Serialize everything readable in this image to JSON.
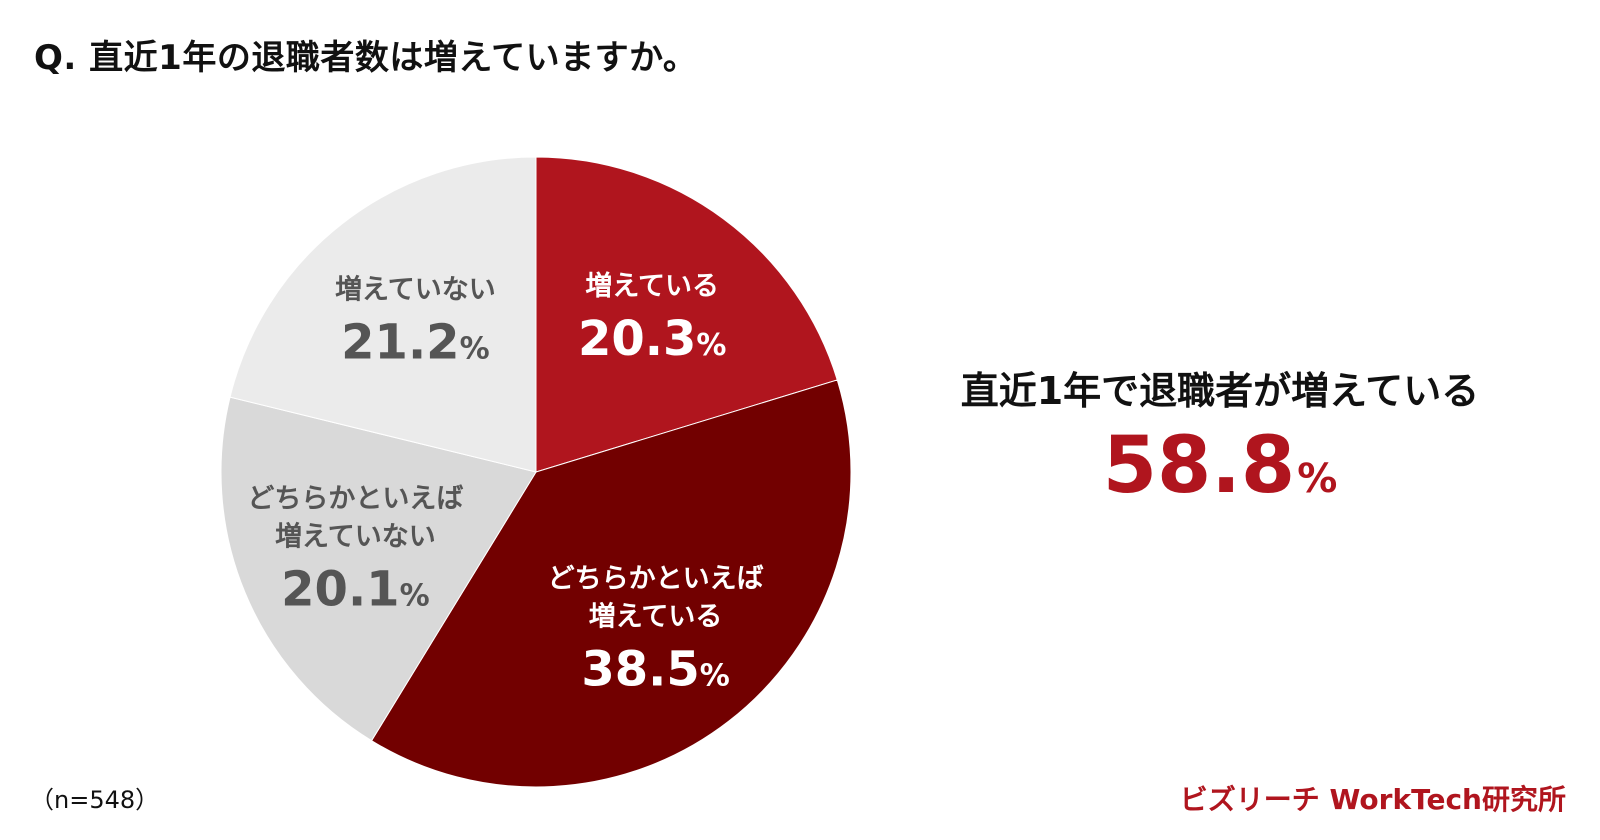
{
  "title": "Q. 直近1年の退職者数は増えていますか。",
  "chart_data": {
    "type": "pie",
    "unit": "%",
    "start_angle_deg": 0,
    "direction": "clockwise",
    "slices": [
      {
        "label_lines": [
          "増えている"
        ],
        "value": 20.3,
        "color": "#b0151e",
        "text_color": "#ffffff"
      },
      {
        "label_lines": [
          "どちらかといえば",
          "増えている"
        ],
        "value": 38.5,
        "color": "#720000",
        "text_color": "#ffffff"
      },
      {
        "label_lines": [
          "どちらかといえば",
          "増えていない"
        ],
        "value": 20.1,
        "color": "#d9d9d9",
        "text_color": "#555555"
      },
      {
        "label_lines": [
          "増えていない"
        ],
        "value": 21.2,
        "color": "#ebebeb",
        "text_color": "#555555"
      }
    ]
  },
  "summary": {
    "text": "直近1年で退職者が増えている",
    "value": "58.8",
    "unit": "%"
  },
  "sample_size": "（n=548）",
  "brand": "ビズリーチ WorkTech研究所"
}
